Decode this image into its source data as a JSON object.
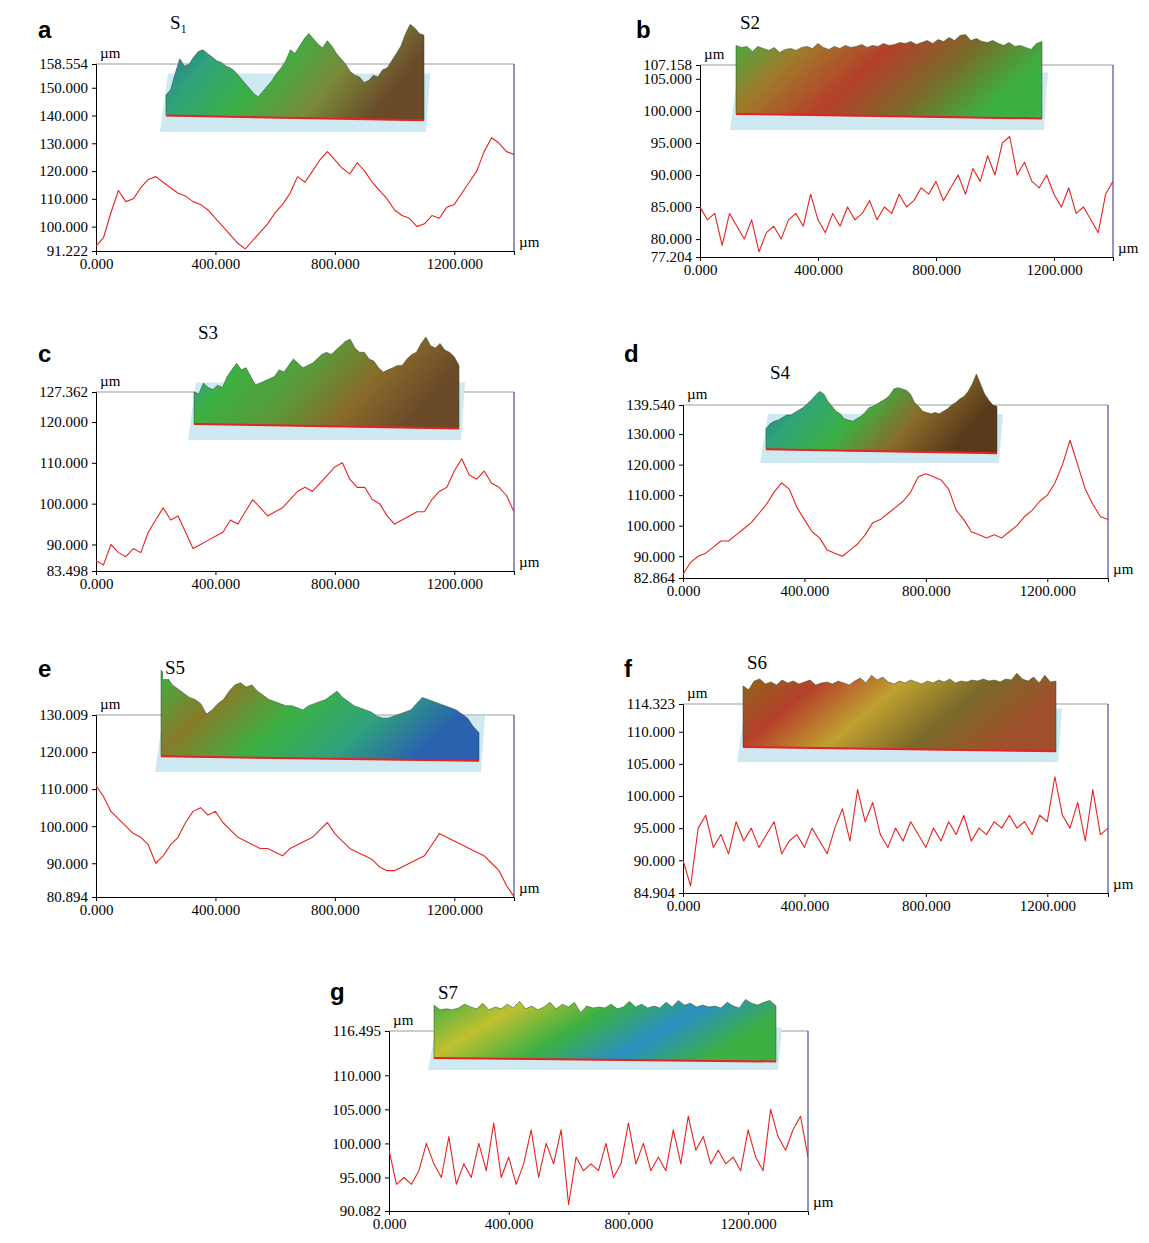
{
  "chart_data": [
    {
      "type": "line",
      "panel_label": "a",
      "title": "S₁",
      "x_label": "µm",
      "y_label": "µm",
      "color": "#e8231f",
      "x": [
        0,
        25,
        50,
        75,
        100,
        125,
        150,
        175,
        200,
        225,
        250,
        275,
        300,
        325,
        350,
        375,
        400,
        425,
        450,
        475,
        500,
        525,
        550,
        575,
        600,
        625,
        650,
        675,
        700,
        725,
        750,
        775,
        800,
        825,
        850,
        875,
        900,
        925,
        950,
        975,
        1000,
        1025,
        1050,
        1075,
        1100,
        1125,
        1150,
        1175,
        1200,
        1225,
        1250,
        1275,
        1300,
        1325,
        1350,
        1375,
        1400
      ],
      "values": [
        93,
        96,
        105,
        113,
        109,
        110,
        114,
        117,
        118,
        116,
        114,
        112,
        111,
        109,
        108,
        106,
        103,
        100,
        97,
        94,
        92,
        95,
        98,
        101,
        105,
        108,
        112,
        118,
        116,
        120,
        124,
        127,
        124,
        121,
        119,
        123,
        120,
        116,
        113,
        110,
        106,
        104,
        103,
        100,
        101,
        104,
        103,
        107,
        108,
        112,
        116,
        120,
        127,
        132,
        130,
        127,
        126
      ],
      "xlim": [
        0,
        1400
      ],
      "xticks": [
        {
          "value": 0,
          "label": "0.000"
        },
        {
          "value": 400,
          "label": "400.000"
        },
        {
          "value": 800,
          "label": "800.000"
        },
        {
          "value": 1200,
          "label": "1200.000"
        }
      ],
      "ylim": [
        91.222,
        158.554
      ],
      "yticks": [
        91.222,
        {
          "value": 100,
          "label": "100.000"
        },
        {
          "value": 110,
          "label": "110.000"
        },
        {
          "value": 120,
          "label": "120.000"
        },
        {
          "value": 130,
          "label": "130.000"
        },
        {
          "value": 140,
          "label": "140.000"
        },
        {
          "value": 150,
          "label": "150.000"
        },
        158.554
      ]
    },
    {
      "type": "line",
      "panel_label": "b",
      "title": "S2",
      "x_label": "µm",
      "y_label": "µm",
      "color": "#e8231f",
      "x": [
        0,
        25,
        50,
        75,
        100,
        125,
        150,
        175,
        200,
        225,
        250,
        275,
        300,
        325,
        350,
        375,
        400,
        425,
        450,
        475,
        500,
        525,
        550,
        575,
        600,
        625,
        650,
        675,
        700,
        725,
        750,
        775,
        800,
        825,
        850,
        875,
        900,
        925,
        950,
        975,
        1000,
        1025,
        1050,
        1075,
        1100,
        1125,
        1150,
        1175,
        1200,
        1225,
        1250,
        1275,
        1300,
        1325,
        1350,
        1375,
        1400
      ],
      "values": [
        85,
        83,
        84,
        79,
        84,
        82,
        80,
        83,
        78,
        81,
        82,
        80,
        83,
        84,
        82,
        87,
        83,
        81,
        84,
        82,
        85,
        83,
        84,
        86,
        83,
        85,
        84,
        87,
        85,
        86,
        88,
        87,
        89,
        86,
        88,
        90,
        87,
        91,
        89,
        93,
        90,
        95,
        96,
        90,
        92,
        89,
        88,
        90,
        87,
        85,
        88,
        84,
        85,
        83,
        81,
        87,
        89
      ],
      "xlim": [
        0,
        1400
      ],
      "xticks": [
        {
          "value": 0,
          "label": "0.000"
        },
        {
          "value": 400,
          "label": "400.000"
        },
        {
          "value": 800,
          "label": "800.000"
        },
        {
          "value": 1200,
          "label": "1200.000"
        }
      ],
      "ylim": [
        77.204,
        107.158
      ],
      "yticks": [
        77.204,
        {
          "value": 80,
          "label": "80.000"
        },
        {
          "value": 85,
          "label": "85.000"
        },
        {
          "value": 90,
          "label": "90.000"
        },
        {
          "value": 95,
          "label": "95.000"
        },
        {
          "value": 100,
          "label": "100.000"
        },
        {
          "value": 105,
          "label": "105.000"
        },
        107.158
      ]
    },
    {
      "type": "line",
      "panel_label": "c",
      "title": "S3",
      "x_label": "µm",
      "y_label": "µm",
      "color": "#e8231f",
      "x": [
        0,
        25,
        50,
        75,
        100,
        125,
        150,
        175,
        200,
        225,
        250,
        275,
        300,
        325,
        350,
        375,
        400,
        425,
        450,
        475,
        500,
        525,
        550,
        575,
        600,
        625,
        650,
        675,
        700,
        725,
        750,
        775,
        800,
        825,
        850,
        875,
        900,
        925,
        950,
        975,
        1000,
        1025,
        1050,
        1075,
        1100,
        1125,
        1150,
        1175,
        1200,
        1225,
        1250,
        1275,
        1300,
        1325,
        1350,
        1375,
        1400
      ],
      "values": [
        86,
        85,
        90,
        88,
        87,
        89,
        88,
        93,
        96,
        99,
        96,
        97,
        93,
        89,
        90,
        91,
        92,
        93,
        96,
        95,
        98,
        101,
        99,
        97,
        98,
        99,
        101,
        103,
        104,
        103,
        105,
        107,
        109,
        110,
        106,
        104,
        104,
        101,
        100,
        97,
        95,
        96,
        97,
        98,
        98,
        101,
        103,
        104,
        108,
        111,
        107,
        106,
        108,
        105,
        104,
        102,
        98
      ],
      "xlim": [
        0,
        1400
      ],
      "xticks": [
        {
          "value": 0,
          "label": "0.000"
        },
        {
          "value": 400,
          "label": "400.000"
        },
        {
          "value": 800,
          "label": "800.000"
        },
        {
          "value": 1200,
          "label": "1200.000"
        }
      ],
      "ylim": [
        83.498,
        127.362
      ],
      "yticks": [
        83.498,
        {
          "value": 90,
          "label": "90.000"
        },
        {
          "value": 100,
          "label": "100.000"
        },
        {
          "value": 110,
          "label": "110.000"
        },
        {
          "value": 120,
          "label": "120.000"
        },
        127.362
      ]
    },
    {
      "type": "line",
      "panel_label": "d",
      "title": "S4",
      "x_label": "µm",
      "y_label": "µm",
      "color": "#e8231f",
      "x": [
        0,
        25,
        50,
        75,
        100,
        125,
        150,
        175,
        200,
        225,
        250,
        275,
        300,
        325,
        350,
        375,
        400,
        425,
        450,
        475,
        500,
        525,
        550,
        575,
        600,
        625,
        650,
        675,
        700,
        725,
        750,
        775,
        800,
        825,
        850,
        875,
        900,
        925,
        950,
        975,
        1000,
        1025,
        1050,
        1075,
        1100,
        1125,
        1150,
        1175,
        1200,
        1225,
        1250,
        1275,
        1300,
        1325,
        1350,
        1375,
        1400
      ],
      "values": [
        84,
        88,
        90,
        91,
        93,
        95,
        95,
        97,
        99,
        101,
        104,
        107,
        111,
        114,
        112,
        106,
        102,
        98,
        96,
        92,
        91,
        90,
        92,
        94,
        97,
        101,
        102,
        104,
        106,
        108,
        111,
        116,
        117,
        116,
        115,
        112,
        105,
        102,
        98,
        97,
        96,
        97,
        96,
        98,
        100,
        103,
        105,
        108,
        110,
        114,
        120,
        128,
        120,
        112,
        107,
        103,
        102
      ],
      "xlim": [
        0,
        1400
      ],
      "xticks": [
        {
          "value": 0,
          "label": "0.000"
        },
        {
          "value": 400,
          "label": "400.000"
        },
        {
          "value": 800,
          "label": "800.000"
        },
        {
          "value": 1200,
          "label": "1200.000"
        }
      ],
      "ylim": [
        82.864,
        139.54
      ],
      "yticks": [
        82.864,
        {
          "value": 90,
          "label": "90.000"
        },
        {
          "value": 100,
          "label": "100.000"
        },
        {
          "value": 110,
          "label": "110.000"
        },
        {
          "value": 120,
          "label": "120.000"
        },
        {
          "value": 130,
          "label": "130.000"
        },
        {
          "value": 139.54,
          "label": "139.540"
        }
      ]
    },
    {
      "type": "line",
      "panel_label": "e",
      "title": "S5",
      "x_label": "µm",
      "y_label": "µm",
      "color": "#e8231f",
      "x": [
        0,
        25,
        50,
        75,
        100,
        125,
        150,
        175,
        200,
        225,
        250,
        275,
        300,
        325,
        350,
        375,
        400,
        425,
        450,
        475,
        500,
        525,
        550,
        575,
        600,
        625,
        650,
        675,
        700,
        725,
        750,
        775,
        800,
        825,
        850,
        875,
        900,
        925,
        950,
        975,
        1000,
        1025,
        1050,
        1075,
        1100,
        1125,
        1150,
        1175,
        1200,
        1225,
        1250,
        1275,
        1300,
        1325,
        1350,
        1375,
        1400
      ],
      "values": [
        111,
        108,
        104,
        102,
        100,
        98,
        97,
        95,
        90,
        92,
        95,
        97,
        101,
        104,
        105,
        103,
        104,
        101,
        99,
        97,
        96,
        95,
        94,
        94,
        93,
        92,
        94,
        95,
        96,
        97,
        99,
        101,
        98,
        96,
        94,
        93,
        92,
        91,
        89,
        88,
        88,
        89,
        90,
        91,
        92,
        95,
        98,
        97,
        96,
        95,
        94,
        93,
        92,
        90,
        88,
        84,
        81
      ],
      "xlim": [
        0,
        1400
      ],
      "xticks": [
        {
          "value": 0,
          "label": "0.000"
        },
        {
          "value": 400,
          "label": "400.000"
        },
        {
          "value": 800,
          "label": "800.000"
        },
        {
          "value": 1200,
          "label": "1200.000"
        }
      ],
      "ylim": [
        80.894,
        130.009
      ],
      "yticks": [
        80.894,
        {
          "value": 90,
          "label": "90.000"
        },
        {
          "value": 100,
          "label": "100.000"
        },
        {
          "value": 110,
          "label": "110.000"
        },
        {
          "value": 120,
          "label": "120.000"
        },
        130.009
      ]
    },
    {
      "type": "line",
      "panel_label": "f",
      "title": "S6",
      "x_label": "µm",
      "y_label": "µm",
      "color": "#e8231f",
      "x": [
        0,
        25,
        50,
        75,
        100,
        125,
        150,
        175,
        200,
        225,
        250,
        275,
        300,
        325,
        350,
        375,
        400,
        425,
        450,
        475,
        500,
        525,
        550,
        575,
        600,
        625,
        650,
        675,
        700,
        725,
        750,
        775,
        800,
        825,
        850,
        875,
        900,
        925,
        950,
        975,
        1000,
        1025,
        1050,
        1075,
        1100,
        1125,
        1150,
        1175,
        1200,
        1225,
        1250,
        1275,
        1300,
        1325,
        1350,
        1375,
        1400
      ],
      "values": [
        90,
        86,
        95,
        97,
        92,
        94,
        91,
        96,
        93,
        95,
        92,
        94,
        96,
        91,
        93,
        94,
        92,
        95,
        93,
        91,
        95,
        98,
        93,
        101,
        96,
        99,
        94,
        92,
        95,
        93,
        96,
        94,
        92,
        95,
        93,
        96,
        94,
        97,
        93,
        95,
        94,
        96,
        95,
        97,
        95,
        96,
        94,
        97,
        96,
        103,
        97,
        95,
        99,
        93,
        101,
        94,
        95
      ],
      "xlim": [
        0,
        1400
      ],
      "xticks": [
        {
          "value": 0,
          "label": "0.000"
        },
        {
          "value": 400,
          "label": "400.000"
        },
        {
          "value": 800,
          "label": "800.000"
        },
        {
          "value": 1200,
          "label": "1200.000"
        }
      ],
      "ylim": [
        84.904,
        114.323
      ],
      "yticks": [
        84.904,
        {
          "value": 90,
          "label": "90.000"
        },
        {
          "value": 95,
          "label": "95.000"
        },
        {
          "value": 100,
          "label": "100.000"
        },
        {
          "value": 105,
          "label": "105.000"
        },
        {
          "value": 110,
          "label": "110.000"
        },
        114.323
      ]
    },
    {
      "type": "line",
      "panel_label": "g",
      "title": "S7",
      "x_label": "µm",
      "y_label": "µm",
      "color": "#e8231f",
      "x": [
        0,
        25,
        50,
        75,
        100,
        125,
        150,
        175,
        200,
        225,
        250,
        275,
        300,
        325,
        350,
        375,
        400,
        425,
        450,
        475,
        500,
        525,
        550,
        575,
        600,
        625,
        650,
        675,
        700,
        725,
        750,
        775,
        800,
        825,
        850,
        875,
        900,
        925,
        950,
        975,
        1000,
        1025,
        1050,
        1075,
        1100,
        1125,
        1150,
        1175,
        1200,
        1225,
        1250,
        1275,
        1300,
        1325,
        1350,
        1375,
        1400
      ],
      "values": [
        99,
        94,
        95,
        94,
        96,
        100,
        97,
        95,
        101,
        94,
        97,
        95,
        100,
        96,
        103,
        95,
        98,
        94,
        97,
        102,
        95,
        100,
        97,
        102,
        91,
        98,
        96,
        97,
        96,
        100,
        95,
        97,
        103,
        97,
        100,
        96,
        98,
        96,
        102,
        97,
        104,
        99,
        101,
        97,
        99,
        97,
        98,
        96,
        102,
        98,
        96,
        105,
        101,
        99,
        102,
        104,
        98
      ],
      "xlim": [
        0,
        1400
      ],
      "xticks": [
        {
          "value": 0,
          "label": "0.000"
        },
        {
          "value": 400,
          "label": "400.000"
        },
        {
          "value": 800,
          "label": "800.000"
        },
        {
          "value": 1200,
          "label": "1200.000"
        }
      ],
      "ylim": [
        90.082,
        116.495
      ],
      "yticks": [
        90.082,
        {
          "value": 95,
          "label": "95.000"
        },
        {
          "value": 100,
          "label": "100.000"
        },
        {
          "value": 105,
          "label": "105.000"
        },
        {
          "value": 110,
          "label": "110.000"
        },
        116.495
      ]
    }
  ]
}
